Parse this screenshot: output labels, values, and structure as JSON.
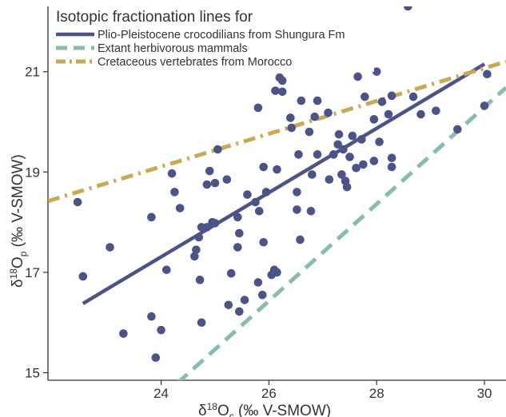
{
  "chart_data": {
    "type": "scatter",
    "xlabel": "δ18Oc (‰ V-SMOW)",
    "ylabel": "δ18Op (‰ V-SMOW)",
    "xlim": [
      21.9,
      30.4
    ],
    "ylim": [
      14.85,
      22.3
    ],
    "x_ticks": [
      24,
      26,
      28,
      30
    ],
    "y_ticks": [
      15,
      17,
      19,
      21
    ],
    "grid": false,
    "legend": {
      "title": "Isotopic fractionation lines for",
      "placement": "top-left"
    },
    "points": [
      [
        22.45,
        18.4
      ],
      [
        22.55,
        16.92
      ],
      [
        23.05,
        17.5
      ],
      [
        23.3,
        15.78
      ],
      [
        23.82,
        18.1
      ],
      [
        23.82,
        16.12
      ],
      [
        23.9,
        15.3
      ],
      [
        24.0,
        15.85
      ],
      [
        24.1,
        17.05
      ],
      [
        24.2,
        18.97
      ],
      [
        24.25,
        18.6
      ],
      [
        24.35,
        18.28
      ],
      [
        24.62,
        17.32
      ],
      [
        24.65,
        17.45
      ],
      [
        24.7,
        17.7
      ],
      [
        24.72,
        16.85
      ],
      [
        24.75,
        16.0
      ],
      [
        24.75,
        17.9
      ],
      [
        24.85,
        18.75
      ],
      [
        24.85,
        17.9
      ],
      [
        24.9,
        19.02
      ],
      [
        24.95,
        18.0
      ],
      [
        25.0,
        18.78
      ],
      [
        25.0,
        17.98
      ],
      [
        25.05,
        19.45
      ],
      [
        25.22,
        18.85
      ],
      [
        25.25,
        16.35
      ],
      [
        25.3,
        16.98
      ],
      [
        25.42,
        18.1
      ],
      [
        25.42,
        17.5
      ],
      [
        25.45,
        16.22
      ],
      [
        25.45,
        17.78
      ],
      [
        25.55,
        16.45
      ],
      [
        25.6,
        18.55
      ],
      [
        25.75,
        18.4
      ],
      [
        25.8,
        20.28
      ],
      [
        25.8,
        16.8
      ],
      [
        25.82,
        18.22
      ],
      [
        25.88,
        16.55
      ],
      [
        25.9,
        19.1
      ],
      [
        25.9,
        17.6
      ],
      [
        25.95,
        18.6
      ],
      [
        26.05,
        16.95
      ],
      [
        26.1,
        17.05
      ],
      [
        26.12,
        20.62
      ],
      [
        26.15,
        19.05
      ],
      [
        26.15,
        17.0
      ],
      [
        26.2,
        20.88
      ],
      [
        26.25,
        20.82
      ],
      [
        26.25,
        20.6
      ],
      [
        26.4,
        20.08
      ],
      [
        26.42,
        19.88
      ],
      [
        26.52,
        18.6
      ],
      [
        26.52,
        18.25
      ],
      [
        26.55,
        19.35
      ],
      [
        26.58,
        17.65
      ],
      [
        26.6,
        20.42
      ],
      [
        26.75,
        19.8
      ],
      [
        26.78,
        18.22
      ],
      [
        26.8,
        18.95
      ],
      [
        26.85,
        20.1
      ],
      [
        26.9,
        19.35
      ],
      [
        26.9,
        20.42
      ],
      [
        27.1,
        20.18
      ],
      [
        27.12,
        18.85
      ],
      [
        27.2,
        19.35
      ],
      [
        27.28,
        19.55
      ],
      [
        27.3,
        19.75
      ],
      [
        27.35,
        18.95
      ],
      [
        27.38,
        19.45
      ],
      [
        27.42,
        18.82
      ],
      [
        27.45,
        18.7
      ],
      [
        27.5,
        19.3
      ],
      [
        27.55,
        19.72
      ],
      [
        27.62,
        19.08
      ],
      [
        27.65,
        20.9
      ],
      [
        27.72,
        19.65
      ],
      [
        27.75,
        19.15
      ],
      [
        27.78,
        20.5
      ],
      [
        27.95,
        19.22
      ],
      [
        27.95,
        20.05
      ],
      [
        28.0,
        21.0
      ],
      [
        28.05,
        19.6
      ],
      [
        28.1,
        20.4
      ],
      [
        28.22,
        20.15
      ],
      [
        28.28,
        19.28
      ],
      [
        28.28,
        20.52
      ],
      [
        28.28,
        19.1
      ],
      [
        28.58,
        22.3
      ],
      [
        28.68,
        20.5
      ],
      [
        28.82,
        20.15
      ],
      [
        29.1,
        20.22
      ],
      [
        29.5,
        19.85
      ],
      [
        30.0,
        20.32
      ],
      [
        30.05,
        20.95
      ]
    ],
    "series": [
      {
        "name": "Plio-Pleistocene crocodilians from Shungura Fm",
        "color": "#4a5488",
        "dash": "solid",
        "x": [
          22.55,
          30.0
        ],
        "y": [
          16.38,
          21.15
        ]
      },
      {
        "name": "Extant herbivorous mammals",
        "color": "#86bcb4",
        "dash": "dashed",
        "x": [
          24.0,
          30.4
        ],
        "y": [
          14.5,
          20.68
        ]
      },
      {
        "name": "Cretaceous vertebrates from Morocco",
        "color": "#c8aa55",
        "dash": "dashdot",
        "x": [
          21.9,
          30.4
        ],
        "y": [
          18.42,
          21.2
        ]
      }
    ],
    "marker_color": "#4a5488"
  }
}
